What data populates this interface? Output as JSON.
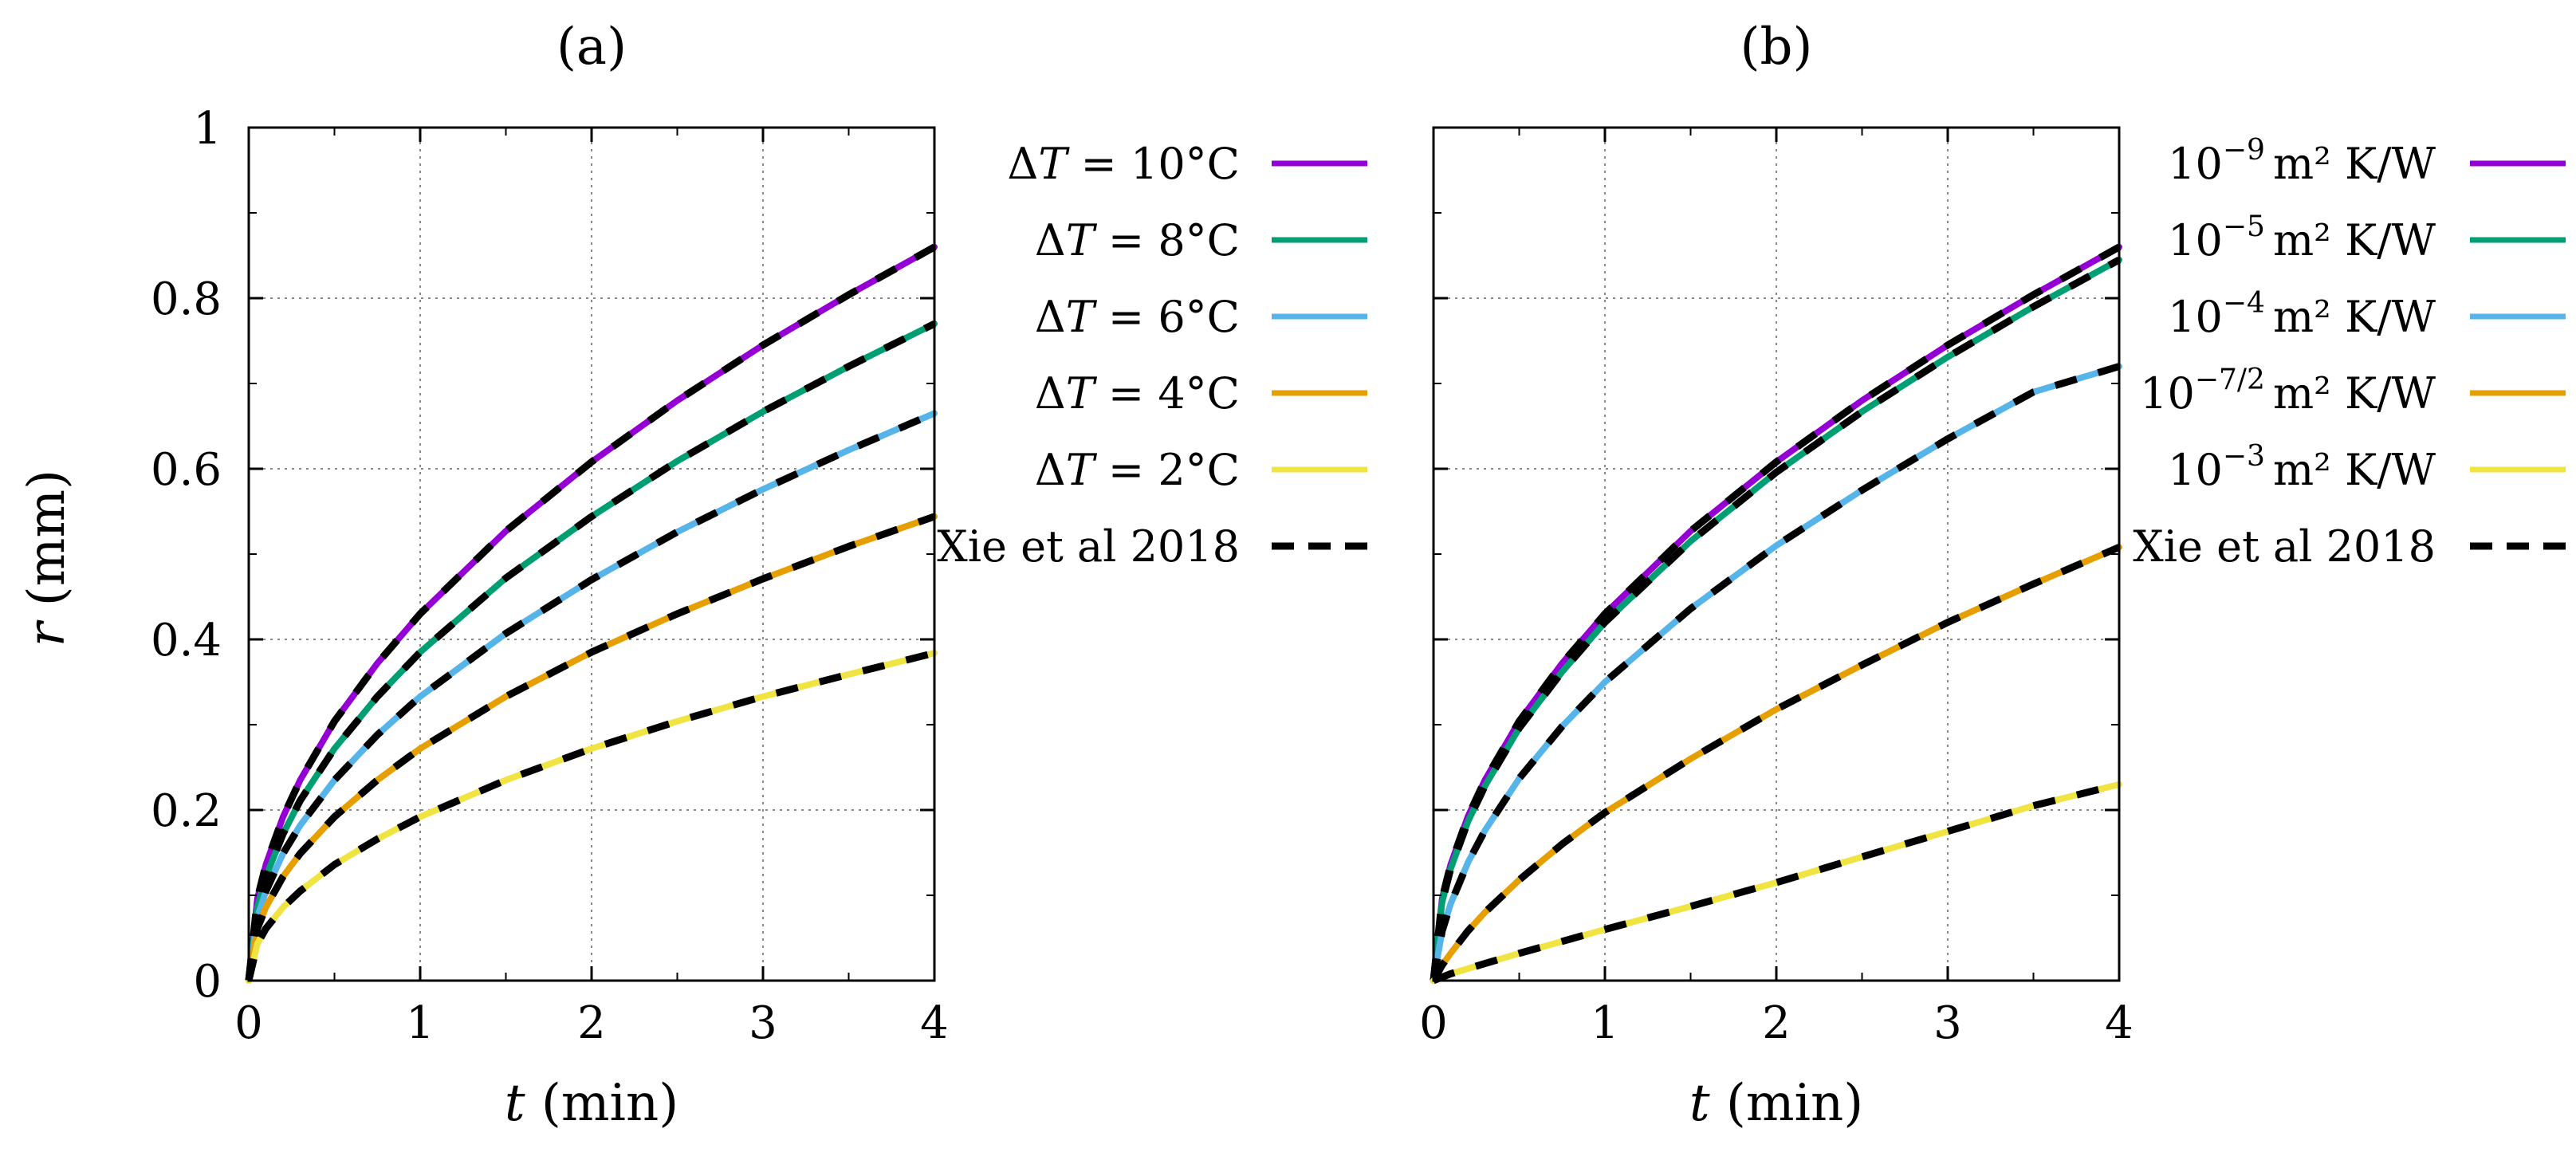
{
  "chart_data": [
    {
      "type": "line",
      "title": "(a)",
      "xlabel": "t (min)",
      "ylabel": "r (mm)",
      "xlim": [
        0,
        4
      ],
      "ylim": [
        0,
        1
      ],
      "xticks": [
        0,
        1,
        2,
        3,
        4
      ],
      "xtick_labels": [
        "0",
        "1",
        "2",
        "3",
        "4"
      ],
      "yticks": [
        0,
        0.2,
        0.4,
        0.6,
        0.8,
        1
      ],
      "ytick_labels": [
        "0",
        "0.2",
        "0.4",
        "0.6",
        "0.8",
        "1"
      ],
      "grid": true,
      "legend_position": "outside-right",
      "series": [
        {
          "name": "ΔT = 10°C",
          "color": "#9400d3",
          "x": [
            0,
            0.05,
            0.1,
            0.2,
            0.3,
            0.5,
            0.75,
            1,
            1.5,
            2,
            2.5,
            3,
            3.5,
            4
          ],
          "y": [
            0,
            0.096,
            0.136,
            0.192,
            0.235,
            0.304,
            0.372,
            0.43,
            0.527,
            0.608,
            0.68,
            0.745,
            0.804,
            0.86
          ]
        },
        {
          "name": "ΔT = 8°C",
          "color": "#009e73",
          "x": [
            0,
            0.05,
            0.1,
            0.2,
            0.3,
            0.5,
            0.75,
            1,
            1.5,
            2,
            2.5,
            3,
            3.5,
            4
          ],
          "y": [
            0,
            0.086,
            0.122,
            0.172,
            0.211,
            0.272,
            0.333,
            0.385,
            0.472,
            0.544,
            0.609,
            0.667,
            0.72,
            0.77
          ]
        },
        {
          "name": "ΔT = 6°C",
          "color": "#56b4e9",
          "x": [
            0,
            0.05,
            0.1,
            0.2,
            0.3,
            0.5,
            0.75,
            1,
            1.5,
            2,
            2.5,
            3,
            3.5,
            4
          ],
          "y": [
            0,
            0.074,
            0.105,
            0.149,
            0.182,
            0.235,
            0.288,
            0.333,
            0.407,
            0.47,
            0.526,
            0.576,
            0.622,
            0.665
          ]
        },
        {
          "name": "ΔT = 4°C",
          "color": "#e69f00",
          "x": [
            0,
            0.05,
            0.1,
            0.2,
            0.3,
            0.5,
            0.75,
            1,
            1.5,
            2,
            2.5,
            3,
            3.5,
            4
          ],
          "y": [
            0,
            0.061,
            0.086,
            0.122,
            0.149,
            0.192,
            0.235,
            0.272,
            0.333,
            0.385,
            0.43,
            0.471,
            0.509,
            0.544
          ]
        },
        {
          "name": "ΔT = 2°C",
          "color": "#f0e442",
          "x": [
            0,
            0.05,
            0.1,
            0.2,
            0.3,
            0.5,
            0.75,
            1,
            1.5,
            2,
            2.5,
            3,
            3.5,
            4
          ],
          "y": [
            0,
            0.043,
            0.061,
            0.086,
            0.105,
            0.136,
            0.166,
            0.192,
            0.235,
            0.272,
            0.304,
            0.333,
            0.359,
            0.384
          ]
        }
      ],
      "reference": {
        "name": "Xie et al 2018",
        "color": "#000000",
        "style": "dashed"
      }
    },
    {
      "type": "line",
      "title": "(b)",
      "xlabel": "t (min)",
      "ylabel": "",
      "xlim": [
        0,
        4
      ],
      "ylim": [
        0,
        1
      ],
      "xticks": [
        0,
        1,
        2,
        3,
        4
      ],
      "xtick_labels": [
        "0",
        "1",
        "2",
        "3",
        "4"
      ],
      "yticks": [
        0,
        0.2,
        0.4,
        0.6,
        0.8,
        1
      ],
      "grid": true,
      "legend_position": "outside-right",
      "series": [
        {
          "name": "10^-9 m² K/W",
          "base": "10",
          "exp": "−9",
          "unit": "m² K/W",
          "color": "#9400d3",
          "x": [
            0,
            0.05,
            0.1,
            0.2,
            0.3,
            0.5,
            0.75,
            1,
            1.5,
            2,
            2.5,
            3,
            3.5,
            4
          ],
          "y": [
            0,
            0.096,
            0.136,
            0.192,
            0.235,
            0.304,
            0.372,
            0.43,
            0.527,
            0.608,
            0.68,
            0.745,
            0.804,
            0.86
          ]
        },
        {
          "name": "10^-5 m² K/W",
          "base": "10",
          "exp": "−5",
          "unit": "m² K/W",
          "color": "#009e73",
          "x": [
            0,
            0.05,
            0.1,
            0.2,
            0.3,
            0.5,
            0.75,
            1,
            1.5,
            2,
            2.5,
            3,
            3.5,
            4
          ],
          "y": [
            0,
            0.092,
            0.131,
            0.186,
            0.228,
            0.296,
            0.362,
            0.42,
            0.515,
            0.596,
            0.667,
            0.731,
            0.79,
            0.845
          ]
        },
        {
          "name": "10^-4 m² K/W",
          "base": "10",
          "exp": "−4",
          "unit": "m² K/W",
          "color": "#56b4e9",
          "x": [
            0,
            0.05,
            0.1,
            0.2,
            0.3,
            0.5,
            0.75,
            1,
            1.5,
            2,
            2.5,
            3,
            3.5,
            4
          ],
          "y": [
            0,
            0.058,
            0.09,
            0.138,
            0.176,
            0.237,
            0.298,
            0.35,
            0.436,
            0.51,
            0.575,
            0.635,
            0.69,
            0.72
          ]
        },
        {
          "name": "10^-7/2 m² K/W",
          "base": "10",
          "exp": "−7/2",
          "unit": "m² K/W",
          "color": "#e69f00",
          "x": [
            0,
            0.05,
            0.1,
            0.2,
            0.3,
            0.5,
            0.75,
            1,
            1.5,
            2,
            2.5,
            3,
            3.5,
            4
          ],
          "y": [
            0,
            0.018,
            0.032,
            0.058,
            0.08,
            0.118,
            0.16,
            0.197,
            0.26,
            0.318,
            0.37,
            0.42,
            0.465,
            0.508
          ]
        },
        {
          "name": "10^-3 m² K/W",
          "base": "10",
          "exp": "−3",
          "unit": "m² K/W",
          "color": "#f0e442",
          "x": [
            0,
            0.05,
            0.1,
            0.2,
            0.3,
            0.5,
            0.75,
            1,
            1.5,
            2,
            2.5,
            3,
            3.5,
            4
          ],
          "y": [
            0,
            0.004,
            0.008,
            0.014,
            0.02,
            0.032,
            0.046,
            0.06,
            0.087,
            0.115,
            0.145,
            0.175,
            0.205,
            0.23
          ]
        }
      ],
      "reference": {
        "name": "Xie et al 2018",
        "color": "#000000",
        "style": "dashed"
      }
    }
  ]
}
